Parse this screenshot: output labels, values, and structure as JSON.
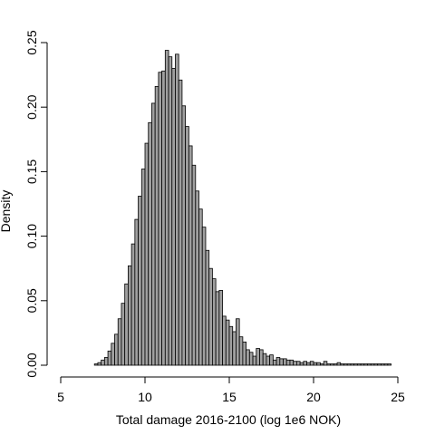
{
  "chart_data": {
    "type": "bar",
    "title": "",
    "xlabel": "Total damage 2016-2100 (log 1e6 NOK)",
    "ylabel": "Density",
    "xlim": [
      5,
      25
    ],
    "ylim": [
      0,
      0.25
    ],
    "x_ticks": [
      5,
      10,
      15,
      20,
      25
    ],
    "y_ticks": [
      0.0,
      0.05,
      0.1,
      0.15,
      0.2,
      0.25
    ],
    "x_tick_labels": [
      "5",
      "10",
      "15",
      "20",
      "25"
    ],
    "y_tick_labels": [
      "0.00",
      "0.05",
      "0.10",
      "0.15",
      "0.20",
      "0.25"
    ],
    "bin_width": 0.2,
    "bin_start": 7.0,
    "bar_fill": "#a0a0a0",
    "bar_stroke": "#000000",
    "grid": false,
    "values": [
      0.001,
      0.002,
      0.004,
      0.006,
      0.011,
      0.017,
      0.024,
      0.036,
      0.048,
      0.063,
      0.077,
      0.094,
      0.113,
      0.131,
      0.152,
      0.172,
      0.188,
      0.203,
      0.216,
      0.227,
      0.228,
      0.244,
      0.239,
      0.23,
      0.241,
      0.221,
      0.201,
      0.185,
      0.17,
      0.155,
      0.135,
      0.121,
      0.107,
      0.089,
      0.075,
      0.067,
      0.057,
      0.058,
      0.038,
      0.035,
      0.03,
      0.026,
      0.036,
      0.022,
      0.018,
      0.012,
      0.01,
      0.007,
      0.013,
      0.012,
      0.009,
      0.007,
      0.008,
      0.004,
      0.006,
      0.005,
      0.005,
      0.004,
      0.004,
      0.003,
      0.003,
      0.002,
      0.003,
      0.002,
      0.003,
      0.002,
      0.002,
      0.001,
      0.003,
      0.001,
      0.001,
      0.001,
      0.002,
      0.001,
      0.001,
      0.001,
      0.001,
      0.001,
      0.001,
      0.001,
      0.001,
      0.001,
      0.001,
      0.001,
      0.001,
      0.001,
      0.001,
      0.001
    ]
  }
}
